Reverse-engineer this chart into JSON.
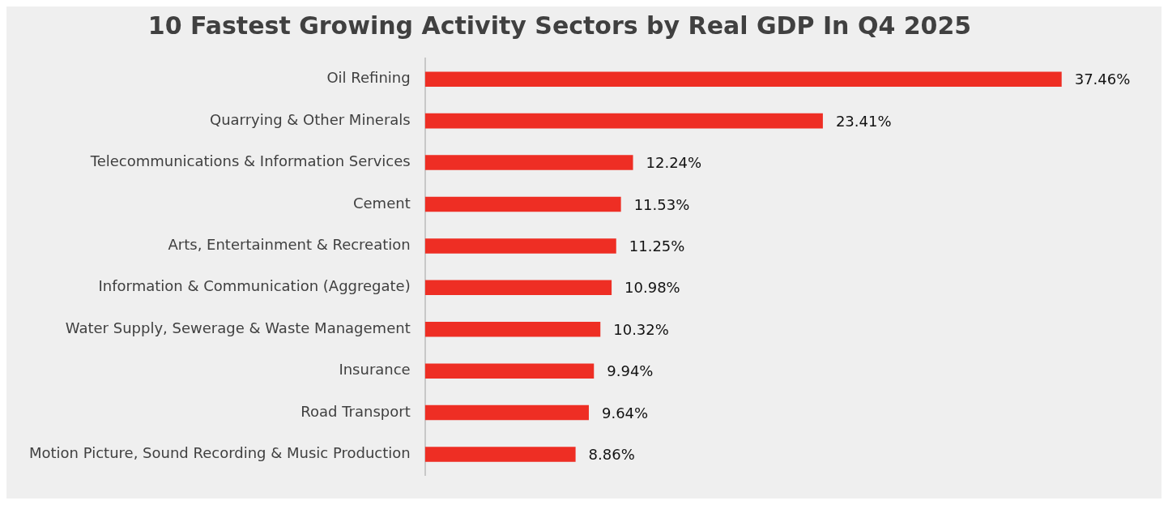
{
  "chart_data": {
    "type": "bar",
    "orientation": "horizontal",
    "title": "10 Fastest Growing Activity Sectors by Real GDP In Q4 2025",
    "categories": [
      "Oil Refining",
      "Quarrying & Other Minerals",
      "Telecommunications & Information Services",
      "Cement",
      "Arts, Entertainment & Recreation",
      "Information & Communication (Aggregate)",
      "Water Supply, Sewerage & Waste Management",
      "Insurance",
      "Road Transport",
      "Motion Picture, Sound Recording & Music Production"
    ],
    "values": [
      37.46,
      23.41,
      12.24,
      11.53,
      11.25,
      10.98,
      10.32,
      9.94,
      9.64,
      8.86
    ],
    "value_labels": [
      "37.46%",
      "23.41%",
      "12.24%",
      "11.53%",
      "11.25%",
      "10.98%",
      "10.32%",
      "9.94%",
      "9.64%",
      "8.86%"
    ],
    "color": "#ee2e24",
    "tick_labels": "y",
    "legend": false
  }
}
